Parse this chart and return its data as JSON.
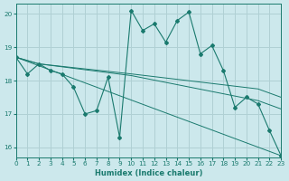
{
  "xlabel": "Humidex (Indice chaleur)",
  "bg_color": "#cce8ec",
  "grid_color": "#b0d0d4",
  "line_color": "#1a7a6e",
  "xlim": [
    0,
    23
  ],
  "ylim": [
    15.7,
    20.3
  ],
  "yticks": [
    16,
    17,
    18,
    19,
    20
  ],
  "xticks": [
    0,
    1,
    2,
    3,
    4,
    5,
    6,
    7,
    8,
    9,
    10,
    11,
    12,
    13,
    14,
    15,
    16,
    17,
    18,
    19,
    20,
    21,
    22,
    23
  ],
  "series": [
    {
      "x": [
        0,
        1,
        2,
        3,
        4,
        5,
        6,
        7,
        8,
        9,
        10,
        11,
        12,
        13,
        14,
        15,
        16,
        17,
        18,
        19,
        20,
        21,
        22,
        23
      ],
      "y": [
        18.7,
        18.2,
        18.5,
        18.3,
        18.2,
        17.8,
        17.0,
        17.1,
        18.1,
        16.3,
        20.1,
        19.5,
        19.7,
        19.15,
        19.8,
        20.05,
        18.8,
        19.05,
        18.3,
        17.2,
        17.5,
        17.3,
        16.5,
        15.75
      ],
      "marker": true
    },
    {
      "x": [
        0,
        23
      ],
      "y": [
        18.7,
        15.75
      ],
      "marker": false
    },
    {
      "x": [
        0,
        2,
        10,
        21,
        23
      ],
      "y": [
        18.7,
        18.5,
        18.2,
        17.75,
        17.5
      ],
      "marker": false
    },
    {
      "x": [
        0,
        2,
        10,
        21,
        23
      ],
      "y": [
        18.7,
        18.5,
        18.15,
        17.4,
        17.15
      ],
      "marker": false
    }
  ]
}
